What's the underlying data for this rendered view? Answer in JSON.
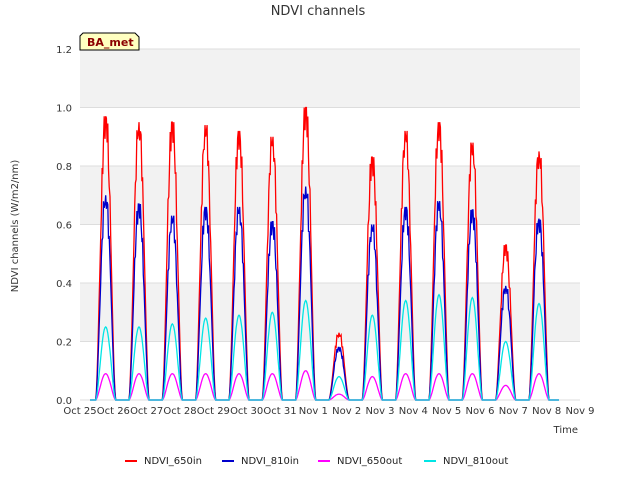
{
  "chart_data": {
    "type": "line",
    "title": "NDVI channels",
    "xlabel": "Time",
    "ylabel": "NDVI channels (W/m2/nm)",
    "ylim": [
      0,
      1.2
    ],
    "yticks": [
      "0.0",
      "0.2",
      "0.4",
      "0.6",
      "0.8",
      "1.0",
      "1.2"
    ],
    "xlim": [
      0,
      15
    ],
    "xticks": [
      "Oct 25",
      "Oct 26",
      "Oct 27",
      "Oct 28",
      "Oct 29",
      "Oct 30",
      "Oct 31",
      "Nov 1",
      "Nov 2",
      "Nov 3",
      "Nov 4",
      "Nov 5",
      "Nov 6",
      "Nov 7",
      "Nov 8",
      "Nov 9"
    ],
    "badge": "BA_met",
    "day_offsets": [
      0.77,
      1.77,
      2.77,
      3.77,
      4.77,
      5.77,
      6.77,
      7.77,
      8.77,
      9.77,
      10.77,
      11.77,
      12.77,
      13.77
    ],
    "series": [
      {
        "name": "NDVI_650in",
        "color": "#ff0000",
        "daily_peaks": [
          0.97,
          0.95,
          0.95,
          0.94,
          0.92,
          0.9,
          1.0,
          0.23,
          0.83,
          0.92,
          0.95,
          0.88,
          0.53,
          0.85
        ]
      },
      {
        "name": "NDVI_810in",
        "color": "#0000cc",
        "daily_peaks": [
          0.7,
          0.67,
          0.63,
          0.66,
          0.66,
          0.61,
          0.73,
          0.18,
          0.6,
          0.66,
          0.68,
          0.65,
          0.39,
          0.62
        ]
      },
      {
        "name": "NDVI_650out",
        "color": "#ff00ff",
        "daily_peaks": [
          0.09,
          0.09,
          0.09,
          0.09,
          0.09,
          0.09,
          0.1,
          0.02,
          0.08,
          0.09,
          0.09,
          0.09,
          0.05,
          0.09
        ]
      },
      {
        "name": "NDVI_810out",
        "color": "#00e5e5",
        "daily_peaks": [
          0.25,
          0.25,
          0.26,
          0.28,
          0.29,
          0.3,
          0.34,
          0.08,
          0.29,
          0.34,
          0.36,
          0.35,
          0.2,
          0.33
        ]
      }
    ]
  }
}
